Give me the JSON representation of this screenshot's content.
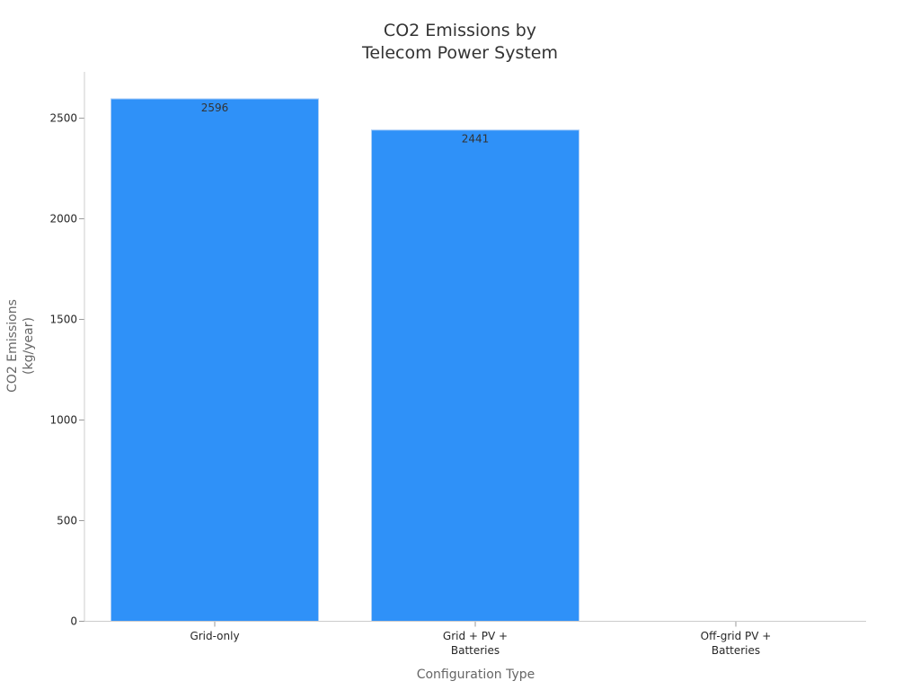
{
  "chart_data": {
    "type": "bar",
    "title": [
      "CO2 Emissions by",
      "Telecom Power System"
    ],
    "xlabel": "Configuration Type",
    "ylabel": [
      "CO2 Emissions",
      "(kg/year)"
    ],
    "categories": [
      [
        "Grid-only"
      ],
      [
        "Grid + PV +",
        "Batteries"
      ],
      [
        "Off-grid PV +",
        "Batteries"
      ]
    ],
    "values": [
      2596,
      2441,
      0
    ],
    "data_labels": [
      "2596",
      "2441",
      ""
    ],
    "ylim": [
      0,
      2730
    ],
    "yticks": [
      0,
      500,
      1000,
      1500,
      2000,
      2500
    ],
    "grid": false,
    "colors": {
      "bar": "#2f91f8",
      "bar_edge": "#a9cdf7"
    }
  }
}
